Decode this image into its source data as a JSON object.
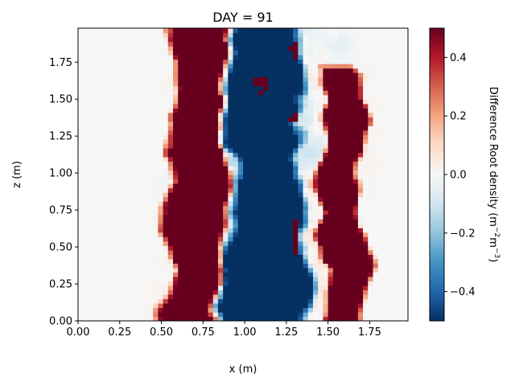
{
  "chart_data": {
    "type": "heatmap",
    "title": "DAY = 91",
    "xlabel": "x (m)",
    "ylabel": "z (m)",
    "xlim": [
      0.0,
      1.98
    ],
    "ylim": [
      0.0,
      1.98
    ],
    "xticks": [
      "0.00",
      "0.25",
      "0.50",
      "0.75",
      "1.00",
      "1.25",
      "1.50",
      "1.75"
    ],
    "xtick_values": [
      0.0,
      0.25,
      0.5,
      0.75,
      1.0,
      1.25,
      1.5,
      1.75
    ],
    "yticks": [
      "0.00",
      "0.25",
      "0.50",
      "0.75",
      "1.00",
      "1.25",
      "1.50",
      "1.75"
    ],
    "ytick_values": [
      0.0,
      0.25,
      0.5,
      0.75,
      1.0,
      1.25,
      1.5,
      1.75
    ],
    "colormap": "RdBu_r",
    "colormap_stops": [
      "#053061",
      "#2166ac",
      "#4393c3",
      "#92c5de",
      "#d1e5f0",
      "#f7f7f7",
      "#fddbc7",
      "#f4a582",
      "#d6604d",
      "#b2182b",
      "#67001f"
    ],
    "colorbar": {
      "label": "Difference Root density",
      "label_units_prefix": "(m",
      "label_units_exp1": "−2",
      "label_units_mid": "m",
      "label_units_exp2": "−3",
      "label_units_suffix": ")",
      "vmin": -0.5,
      "vmax": 0.5,
      "ticks": [
        "0.4",
        "0.2",
        "0.0",
        "−0.2",
        "−0.4"
      ],
      "tick_values": [
        0.4,
        0.2,
        0.0,
        -0.2,
        -0.4
      ]
    },
    "field": {
      "background_value": 0.0,
      "description_of_bands": [
        {
          "x_center": 0.72,
          "width": 0.34,
          "value": 0.5,
          "z_range": [
            0.0,
            1.98
          ]
        },
        {
          "x_center": 1.12,
          "width": 0.44,
          "value": -0.5,
          "z_range": [
            0.0,
            1.98
          ]
        },
        {
          "x_center": 1.58,
          "width": 0.24,
          "value": 0.5,
          "z_range": [
            0.0,
            1.7
          ]
        }
      ]
    }
  }
}
